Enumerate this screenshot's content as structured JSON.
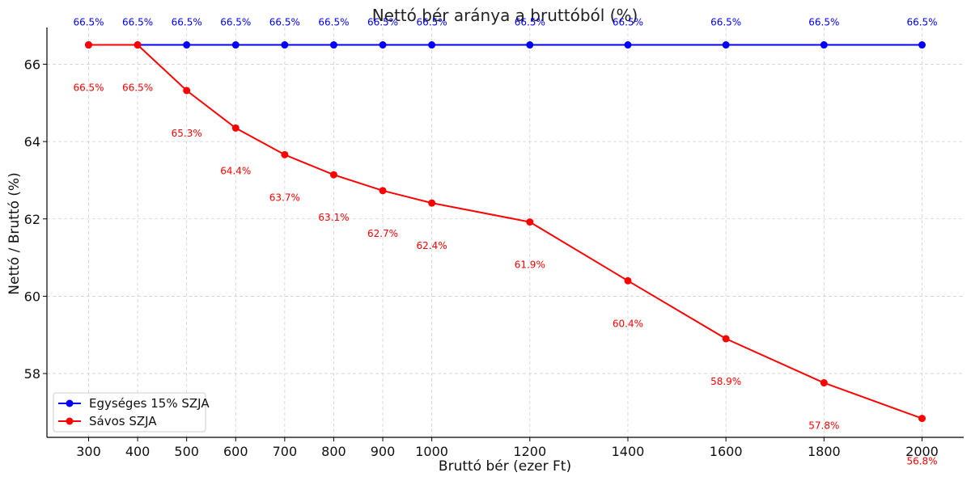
{
  "chart_data": {
    "type": "line",
    "title": "Nettó bér aránya a bruttóból (%)",
    "xlabel": "Bruttó bér (ezer Ft)",
    "ylabel": "Nettó / Bruttó (%)",
    "x": [
      300,
      400,
      500,
      600,
      700,
      800,
      900,
      1000,
      1200,
      1400,
      1600,
      1800,
      2000
    ],
    "xlim": [
      215,
      2085
    ],
    "ylim": [
      56.35,
      66.95
    ],
    "yticks": [
      58,
      60,
      62,
      64,
      66
    ],
    "grid": true,
    "legend_position": "bottom-left",
    "series": [
      {
        "name": "Egységes 15% SZJA",
        "color": "#0000ff",
        "values": [
          66.5,
          66.5,
          66.5,
          66.5,
          66.5,
          66.5,
          66.5,
          66.5,
          66.5,
          66.5,
          66.5,
          66.5,
          66.5
        ],
        "labels": [
          "66.5%",
          "66.5%",
          "66.5%",
          "66.5%",
          "66.5%",
          "66.5%",
          "66.5%",
          "66.5%",
          "66.5%",
          "66.5%",
          "66.5%",
          "66.5%",
          "66.5%"
        ],
        "label_position": "above"
      },
      {
        "name": "Sávos SZJA",
        "color": "#ff0000",
        "values": [
          66.5,
          66.5,
          65.32,
          64.35,
          63.66,
          63.14,
          62.73,
          62.41,
          61.92,
          60.4,
          58.9,
          57.76,
          56.84
        ],
        "labels": [
          "66.5%",
          "66.5%",
          "65.3%",
          "64.4%",
          "63.7%",
          "63.1%",
          "62.7%",
          "62.4%",
          "61.9%",
          "60.4%",
          "58.9%",
          "57.8%",
          "56.8%"
        ],
        "label_position": "below"
      }
    ]
  }
}
